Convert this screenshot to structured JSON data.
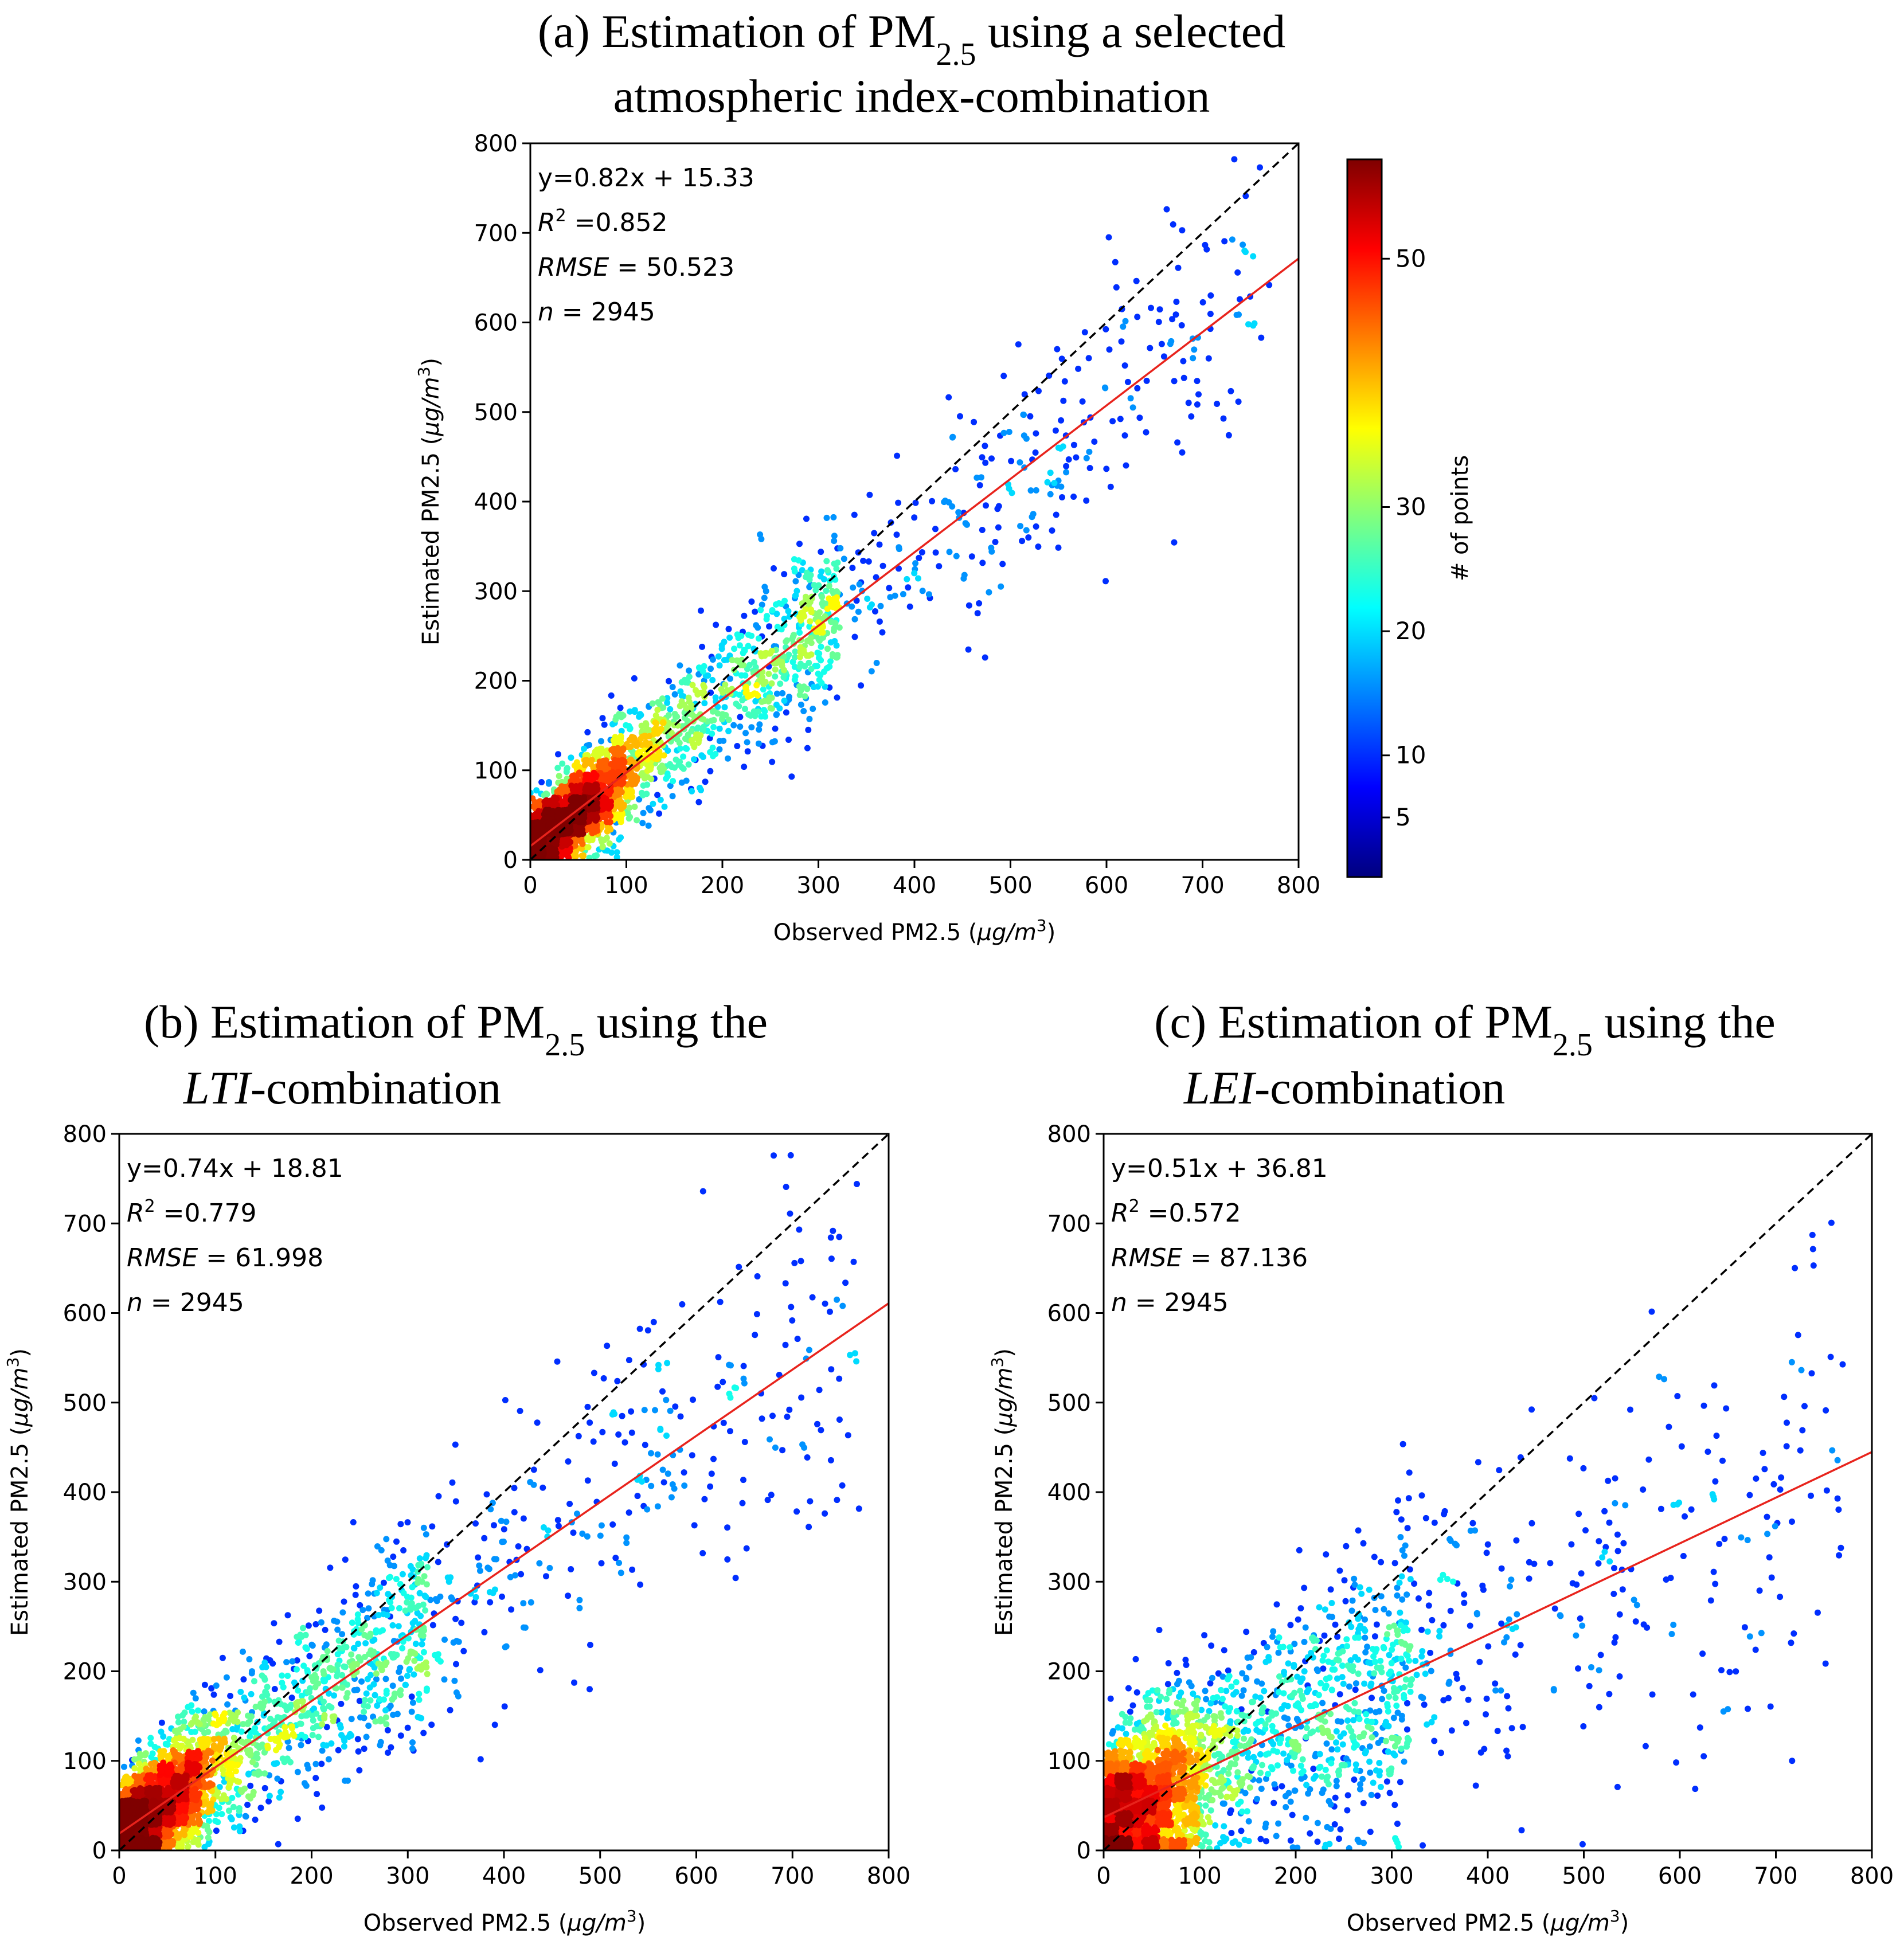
{
  "figure": {
    "colorbar": {
      "label": "# of points",
      "ticks": [
        5,
        10,
        20,
        30,
        50
      ],
      "range": [
        0.2,
        58
      ],
      "colormap": [
        "#00007f",
        "#0000ff",
        "#007fff",
        "#00ffff",
        "#7fff7f",
        "#ffff00",
        "#ff7f00",
        "#ff0000",
        "#7f0000"
      ]
    }
  },
  "chart_data": [
    {
      "id": "a",
      "type": "scatter",
      "title_prefix": "(a) Estimation of PM",
      "title_sub": "2.5",
      "title_suffix": " using a selected",
      "title_line2_text": "atmospheric index-combination",
      "xlabel": "Observed PM2.5 (",
      "ylabel": "Estimated PM2.5 (",
      "unit_main": "μg/m",
      "unit_exp": "3",
      "unit_close": ")",
      "xlim": [
        0,
        800
      ],
      "ylim": [
        0,
        800
      ],
      "xticks": [
        0,
        100,
        200,
        300,
        400,
        500,
        600,
        700,
        800
      ],
      "yticks": [
        0,
        100,
        200,
        300,
        400,
        500,
        600,
        700,
        800
      ],
      "fit": {
        "slope": 0.82,
        "intercept": 15.33
      },
      "stats": {
        "equation": "y=0.82x + 15.33",
        "r2_symbol": "R",
        "r2_exp": "2",
        "r2_value": " =0.852",
        "rmse_label": "RMSE",
        "rmse_value": "= 50.523",
        "n_label": "n",
        "n_value": "= 2945"
      },
      "n_points": 2945,
      "scatter_spread": 45,
      "seed": 11
    },
    {
      "id": "b",
      "type": "scatter",
      "title_prefix": "(b) Estimation of PM",
      "title_sub": "2.5",
      "title_suffix": " using the",
      "title_line2_italic": "LTI",
      "title_line2_text": "-combination",
      "xlabel": "Observed PM2.5 (",
      "ylabel": "Estimated PM2.5 (",
      "unit_main": "μg/m",
      "unit_exp": "3",
      "unit_close": ")",
      "xlim": [
        0,
        800
      ],
      "ylim": [
        0,
        800
      ],
      "xticks": [
        0,
        100,
        200,
        300,
        400,
        500,
        600,
        700,
        800
      ],
      "yticks": [
        0,
        100,
        200,
        300,
        400,
        500,
        600,
        700,
        800
      ],
      "fit": {
        "slope": 0.74,
        "intercept": 18.81
      },
      "stats": {
        "equation": "y=0.74x + 18.81",
        "r2_symbol": "R",
        "r2_exp": "2",
        "r2_value": " =0.779",
        "rmse_label": "RMSE",
        "rmse_value": "= 61.998",
        "n_label": "n",
        "n_value": "= 2945"
      },
      "n_points": 2945,
      "scatter_spread": 58,
      "seed": 23
    },
    {
      "id": "c",
      "type": "scatter",
      "title_prefix": "(c) Estimation of PM",
      "title_sub": "2.5",
      "title_suffix": " using the",
      "title_line2_italic": "LEI",
      "title_line2_text": "-combination",
      "xlabel": "Observed PM2.5 (",
      "ylabel": "Estimated PM2.5 (",
      "unit_main": "μg/m",
      "unit_exp": "3",
      "unit_close": ")",
      "xlim": [
        0,
        800
      ],
      "ylim": [
        0,
        800
      ],
      "xticks": [
        0,
        100,
        200,
        300,
        400,
        500,
        600,
        700,
        800
      ],
      "yticks": [
        0,
        100,
        200,
        300,
        400,
        500,
        600,
        700,
        800
      ],
      "fit": {
        "slope": 0.51,
        "intercept": 36.81
      },
      "stats": {
        "equation": "y=0.51x + 36.81",
        "r2_symbol": "R",
        "r2_exp": "2",
        "r2_value": " =0.572",
        "rmse_label": "RMSE",
        "rmse_value": "= 87.136",
        "n_label": "n",
        "n_value": "= 2945"
      },
      "n_points": 2945,
      "scatter_spread": 80,
      "seed": 37
    }
  ]
}
